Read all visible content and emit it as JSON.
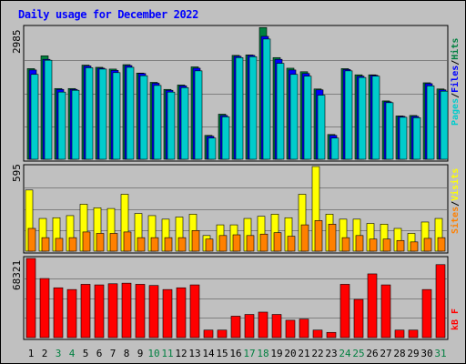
{
  "title": "Daily usage for December 2022",
  "colors": {
    "pages": "#00cccc",
    "files": "#0000ff",
    "hits": "#008040",
    "visits": "#ffff00",
    "sites": "#ff8000",
    "kbytes": "#ff0000",
    "weekend_day": "#008040",
    "weekday": "#000000"
  },
  "labels": {
    "top_max": "2985",
    "mid_max": "595",
    "bottom_max": "68321",
    "legend_pages": "Pages",
    "legend_files": "Files",
    "legend_hits": "Hits",
    "legend_sites": "Sites",
    "legend_visits": "Visits",
    "legend_kbytes": "kB F",
    "sep": "/"
  },
  "chart_data": [
    {
      "type": "bar",
      "panel": "hits-files-pages",
      "x": [
        1,
        2,
        3,
        4,
        5,
        6,
        7,
        8,
        9,
        10,
        11,
        12,
        13,
        14,
        15,
        16,
        17,
        18,
        19,
        20,
        21,
        22,
        23,
        24,
        25,
        26,
        27,
        28,
        29,
        30,
        31
      ],
      "weekend_days": [
        3,
        4,
        10,
        11,
        17,
        18,
        24,
        25,
        31
      ],
      "ylim": [
        0,
        2985
      ],
      "series": [
        {
          "name": "Hits",
          "values": [
            2050,
            2340,
            1600,
            1600,
            2130,
            2080,
            2040,
            2140,
            1950,
            1740,
            1580,
            1680,
            2090,
            540,
            1020,
            2350,
            2360,
            2980,
            2300,
            2060,
            1980,
            1590,
            560,
            2050,
            1910,
            1910,
            1320,
            980,
            990,
            1730,
            1590
          ]
        },
        {
          "name": "Files",
          "values": [
            2020,
            2260,
            1580,
            1580,
            2110,
            2060,
            2010,
            2120,
            1940,
            1720,
            1560,
            1660,
            2060,
            520,
            990,
            2330,
            2350,
            2780,
            2260,
            2020,
            1940,
            1570,
            540,
            2030,
            1880,
            1900,
            1300,
            970,
            970,
            1710,
            1570
          ]
        },
        {
          "name": "Pages",
          "values": [
            1920,
            2240,
            1520,
            1560,
            2070,
            2040,
            1960,
            2080,
            1890,
            1670,
            1520,
            1620,
            2000,
            480,
            960,
            2300,
            2320,
            2720,
            2170,
            1920,
            1880,
            1450,
            480,
            2000,
            1850,
            1880,
            1280,
            950,
            940,
            1660,
            1540
          ]
        }
      ]
    },
    {
      "type": "bar",
      "panel": "visits-sites",
      "x": [
        1,
        2,
        3,
        4,
        5,
        6,
        7,
        8,
        9,
        10,
        11,
        12,
        13,
        14,
        15,
        16,
        17,
        18,
        19,
        20,
        21,
        22,
        23,
        24,
        25,
        26,
        27,
        28,
        29,
        30,
        31
      ],
      "ylim": [
        0,
        595
      ],
      "series": [
        {
          "name": "Visits",
          "values": [
            430,
            230,
            235,
            250,
            330,
            305,
            300,
            400,
            265,
            250,
            225,
            240,
            260,
            110,
            185,
            185,
            230,
            245,
            260,
            235,
            400,
            595,
            260,
            225,
            225,
            195,
            190,
            160,
            125,
            205,
            230
          ]
        },
        {
          "name": "Sites",
          "values": [
            160,
            95,
            90,
            95,
            135,
            125,
            125,
            135,
            95,
            95,
            95,
            95,
            145,
            85,
            110,
            115,
            110,
            120,
            130,
            105,
            185,
            215,
            190,
            95,
            110,
            85,
            85,
            75,
            65,
            90,
            95
          ]
        }
      ]
    },
    {
      "type": "bar",
      "panel": "kbytes",
      "x": [
        1,
        2,
        3,
        4,
        5,
        6,
        7,
        8,
        9,
        10,
        11,
        12,
        13,
        14,
        15,
        16,
        17,
        18,
        19,
        20,
        21,
        22,
        23,
        24,
        25,
        26,
        27,
        28,
        29,
        30,
        31
      ],
      "ylim": [
        0,
        68321
      ],
      "series": [
        {
          "name": "kB F",
          "values": [
            68321,
            51000,
            43000,
            41500,
            46000,
            45500,
            46500,
            47000,
            46000,
            45000,
            41500,
            43000,
            45500,
            6500,
            6500,
            18500,
            20000,
            22000,
            20000,
            15000,
            16000,
            6500,
            4500,
            46000,
            33000,
            55000,
            45500,
            6500,
            6500,
            41500,
            63000
          ]
        }
      ]
    }
  ]
}
